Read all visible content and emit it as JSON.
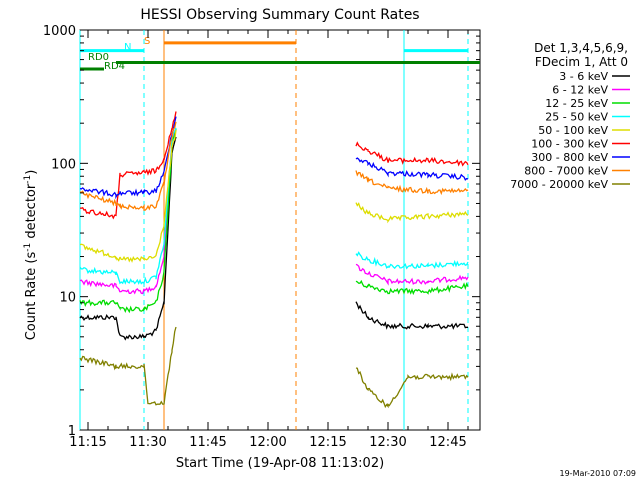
{
  "chart_data": {
    "type": "line",
    "title": "HESSI Observing Summary Count Rates",
    "xlabel": "Start Time (19-Apr-08 11:13:02)",
    "ylabel_main": "Count Rate (s",
    "ylabel_sup1": "-1",
    "ylabel_mid": " detector",
    "ylabel_sup2": "-1",
    "ylabel_end": ")",
    "y_scale": "log",
    "ylim": [
      1,
      1000
    ],
    "xlim": [
      "11:13",
      "12:53"
    ],
    "x_ticks": [
      "11:15",
      "11:30",
      "11:45",
      "12:00",
      "12:15",
      "12:30",
      "12:45"
    ],
    "y_ticks": [
      {
        "value": 1,
        "label": "1"
      },
      {
        "value": 10,
        "label": "10"
      },
      {
        "value": 100,
        "label": "100"
      },
      {
        "value": 1000,
        "label": "1000"
      }
    ],
    "legend_header": [
      "Det 1,3,4,5,6,9,",
      "FDecim 1, Att 0"
    ],
    "series": [
      {
        "name": "3 - 6 keV",
        "color": "#000000",
        "points": [
          [
            "11:13",
            7
          ],
          [
            "11:22",
            7
          ],
          [
            "11:23",
            5
          ],
          [
            "11:29",
            5
          ],
          [
            "11:32",
            5.5
          ],
          [
            "11:34",
            9
          ],
          [
            "11:36",
            120
          ],
          [
            "11:37",
            160
          ],
          [
            "12:22",
            9
          ],
          [
            "12:25",
            7
          ],
          [
            "12:30",
            6
          ],
          [
            "12:40",
            6
          ],
          [
            "12:50",
            6
          ]
        ]
      },
      {
        "name": "6 - 12 keV",
        "color": "#ff00ff",
        "points": [
          [
            "11:13",
            13
          ],
          [
            "11:22",
            12
          ],
          [
            "11:23",
            11
          ],
          [
            "11:29",
            11
          ],
          [
            "11:32",
            12
          ],
          [
            "11:34",
            20
          ],
          [
            "11:36",
            150
          ],
          [
            "11:37",
            190
          ],
          [
            "12:22",
            17
          ],
          [
            "12:25",
            15
          ],
          [
            "12:30",
            13
          ],
          [
            "12:40",
            13
          ],
          [
            "12:50",
            14
          ]
        ]
      },
      {
        "name": "12 - 25 keV",
        "color": "#00dd00",
        "points": [
          [
            "11:13",
            9
          ],
          [
            "11:22",
            9
          ],
          [
            "11:23",
            8
          ],
          [
            "11:29",
            8
          ],
          [
            "11:32",
            9
          ],
          [
            "11:34",
            15
          ],
          [
            "11:36",
            140
          ],
          [
            "11:37",
            180
          ],
          [
            "12:22",
            13
          ],
          [
            "12:25",
            12
          ],
          [
            "12:30",
            11
          ],
          [
            "12:40",
            11
          ],
          [
            "12:50",
            12
          ]
        ]
      },
      {
        "name": "25 - 50 keV",
        "color": "#00ffff",
        "points": [
          [
            "11:13",
            16
          ],
          [
            "11:22",
            15
          ],
          [
            "11:23",
            13
          ],
          [
            "11:29",
            13
          ],
          [
            "11:32",
            14
          ],
          [
            "11:34",
            25
          ],
          [
            "11:36",
            150
          ],
          [
            "11:37",
            190
          ],
          [
            "12:22",
            21
          ],
          [
            "12:25",
            19
          ],
          [
            "12:30",
            17
          ],
          [
            "12:40",
            17
          ],
          [
            "12:50",
            18
          ]
        ]
      },
      {
        "name": "50 - 100 keV",
        "color": "#dddd00",
        "points": [
          [
            "11:13",
            24
          ],
          [
            "11:22",
            20
          ],
          [
            "11:23",
            19
          ],
          [
            "11:29",
            19
          ],
          [
            "11:32",
            20
          ],
          [
            "11:34",
            35
          ],
          [
            "11:36",
            130
          ],
          [
            "11:37",
            170
          ],
          [
            "12:22",
            50
          ],
          [
            "12:25",
            42
          ],
          [
            "12:30",
            38
          ],
          [
            "12:40",
            40
          ],
          [
            "12:50",
            42
          ]
        ]
      },
      {
        "name": "100 - 300 keV",
        "color": "#ff0000",
        "points": [
          [
            "11:13",
            45
          ],
          [
            "11:22",
            40
          ],
          [
            "11:23",
            82
          ],
          [
            "11:29",
            85
          ],
          [
            "11:32",
            88
          ],
          [
            "11:34",
            110
          ],
          [
            "11:36",
            180
          ],
          [
            "11:37",
            240
          ],
          [
            "12:22",
            140
          ],
          [
            "12:25",
            125
          ],
          [
            "12:30",
            105
          ],
          [
            "12:40",
            105
          ],
          [
            "12:50",
            100
          ]
        ]
      },
      {
        "name": "300 - 800 keV",
        "color": "#0000ff",
        "points": [
          [
            "11:13",
            65
          ],
          [
            "11:22",
            58
          ],
          [
            "11:23",
            60
          ],
          [
            "11:29",
            60
          ],
          [
            "11:32",
            62
          ],
          [
            "11:34",
            85
          ],
          [
            "11:36",
            170
          ],
          [
            "11:37",
            220
          ],
          [
            "12:22",
            110
          ],
          [
            "12:25",
            100
          ],
          [
            "12:30",
            85
          ],
          [
            "12:40",
            82
          ],
          [
            "12:50",
            78
          ]
        ]
      },
      {
        "name": "800 - 7000 keV",
        "color": "#ff8000",
        "points": [
          [
            "11:13",
            60
          ],
          [
            "11:22",
            50
          ],
          [
            "11:23",
            48
          ],
          [
            "11:29",
            46
          ],
          [
            "11:32",
            48
          ],
          [
            "11:34",
            70
          ],
          [
            "11:36",
            160
          ],
          [
            "11:37",
            210
          ],
          [
            "12:22",
            85
          ],
          [
            "12:25",
            75
          ],
          [
            "12:30",
            65
          ],
          [
            "12:40",
            62
          ],
          [
            "12:50",
            62
          ]
        ]
      },
      {
        "name": "7000 - 20000 keV",
        "color": "#808000",
        "points": [
          [
            "11:13",
            3.5
          ],
          [
            "11:22",
            3
          ],
          [
            "11:23",
            3
          ],
          [
            "11:29",
            3
          ],
          [
            "11:30",
            1.6
          ],
          [
            "11:34",
            1.6
          ],
          [
            "11:36",
            4
          ],
          [
            "11:37",
            6
          ],
          [
            "12:22",
            3
          ],
          [
            "12:25",
            2
          ],
          [
            "12:30",
            1.5
          ],
          [
            "12:35",
            2.5
          ],
          [
            "12:40",
            2.5
          ],
          [
            "12:50",
            2.5
          ]
        ]
      }
    ],
    "event_bars": [
      {
        "label": "N",
        "color": "#00ffff",
        "y_value": 700,
        "from": "11:13",
        "to": "11:29"
      },
      {
        "label": "",
        "color": "#00ffff",
        "y_value": 700,
        "from": "12:34",
        "to": "12:50"
      },
      {
        "label": "S",
        "color": "#ff8000",
        "y_value": 800,
        "from": "11:34",
        "to": "12:07"
      },
      {
        "label": "RD0",
        "color": "#008000",
        "y_value": 570,
        "from": "11:22",
        "to": "12:53"
      },
      {
        "label": "RD4",
        "color": "#008000",
        "y_value": 510,
        "from": "11:13",
        "to": "11:19"
      }
    ],
    "vertical_markers": [
      {
        "time": "11:13",
        "color": "#00ffff",
        "style": "solid"
      },
      {
        "time": "11:29",
        "color": "#00ffff",
        "style": "dashed"
      },
      {
        "time": "11:34",
        "color": "#ff8000",
        "style": "solid"
      },
      {
        "time": "12:07",
        "color": "#ff8000",
        "style": "dashed"
      },
      {
        "time": "12:34",
        "color": "#00ffff",
        "style": "solid"
      },
      {
        "time": "12:50",
        "color": "#00ffff",
        "style": "dashed"
      }
    ],
    "grid": false,
    "legend_position": "right"
  },
  "footer_date": "19-Mar-2010 07:09"
}
